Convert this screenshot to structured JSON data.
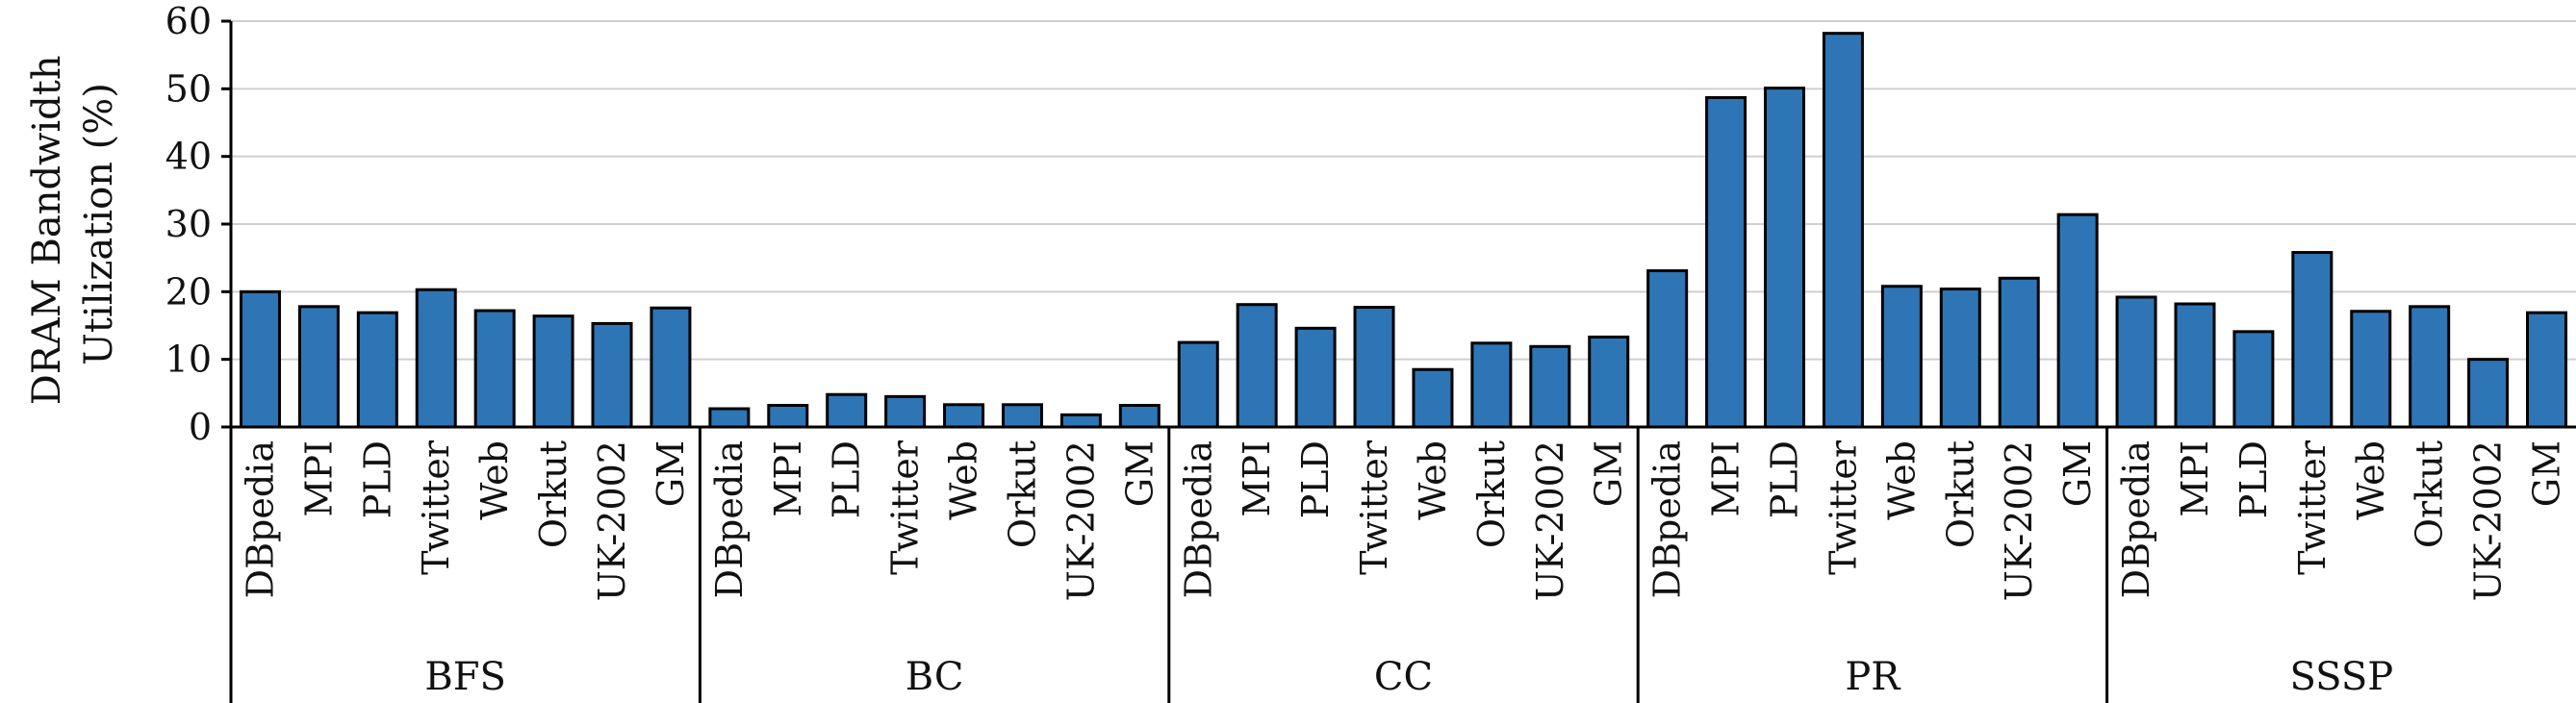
{
  "colors": {
    "bar": "#2e75b6",
    "grid": "#cfcfcf",
    "axis": "#000000"
  },
  "chart_data": {
    "type": "bar",
    "ylabel": [
      "DRAM Bandwidth",
      "Utilization (%)"
    ],
    "ylim": [
      0,
      60
    ],
    "yticks": [
      "0",
      "10",
      "20",
      "30",
      "40",
      "50",
      "60"
    ],
    "grid": true,
    "groups": [
      {
        "name": "BFS",
        "categories": [
          "DBpedia",
          "MPI",
          "PLD",
          "Twitter",
          "Web",
          "Orkut",
          "UK-2002",
          "GM"
        ],
        "values": [
          20.0,
          17.8,
          16.9,
          20.3,
          17.2,
          16.4,
          15.3,
          17.6
        ]
      },
      {
        "name": "BC",
        "categories": [
          "DBpedia",
          "MPI",
          "PLD",
          "Twitter",
          "Web",
          "Orkut",
          "UK-2002",
          "GM"
        ],
        "values": [
          2.7,
          3.2,
          4.8,
          4.5,
          3.3,
          3.3,
          1.8,
          3.2
        ]
      },
      {
        "name": "CC",
        "categories": [
          "DBpedia",
          "MPI",
          "PLD",
          "Twitter",
          "Web",
          "Orkut",
          "UK-2002",
          "GM"
        ],
        "values": [
          12.5,
          18.1,
          14.6,
          17.7,
          8.5,
          12.4,
          11.9,
          13.3
        ]
      },
      {
        "name": "PR",
        "categories": [
          "DBpedia",
          "MPI",
          "PLD",
          "Twitter",
          "Web",
          "Orkut",
          "UK-2002",
          "GM"
        ],
        "values": [
          23.1,
          48.7,
          50.1,
          58.2,
          20.8,
          20.4,
          22.0,
          31.4
        ]
      },
      {
        "name": "SSSP",
        "categories": [
          "DBpedia",
          "MPI",
          "PLD",
          "Twitter",
          "Web",
          "Orkut",
          "UK-2002",
          "GM"
        ],
        "values": [
          19.2,
          18.2,
          14.1,
          25.8,
          17.1,
          17.8,
          10.0,
          16.9
        ]
      }
    ]
  }
}
